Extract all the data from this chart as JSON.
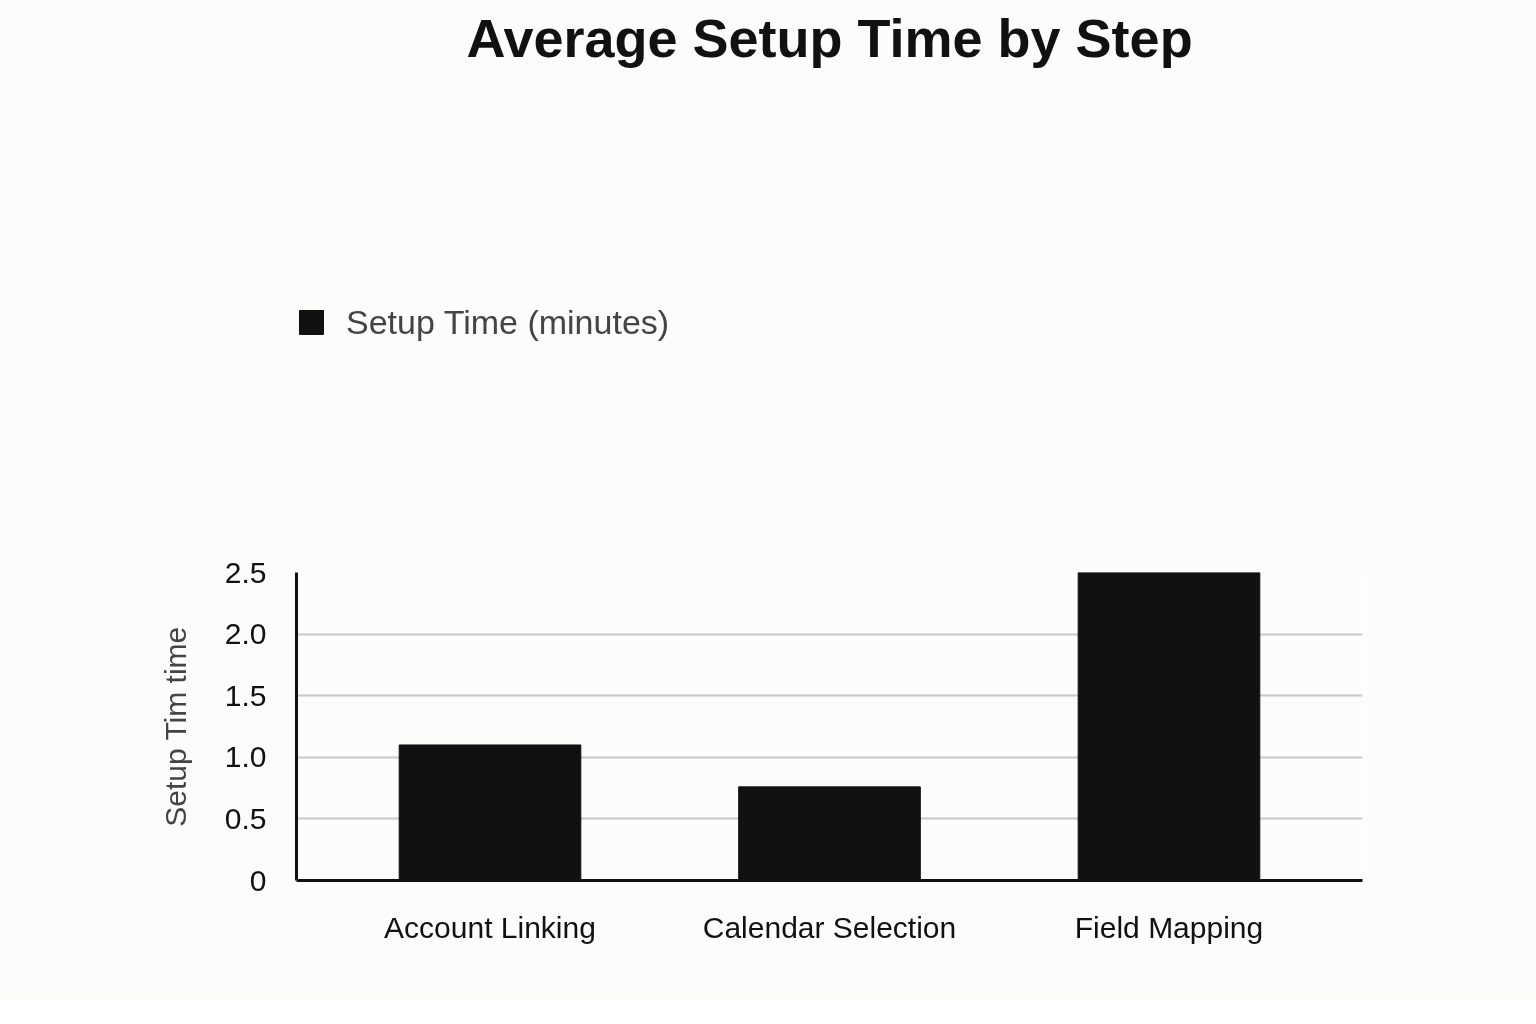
{
  "chart_data": {
    "type": "bar",
    "title": "Average Setup Time by Step",
    "ylabel": "Setup Tim time",
    "categories": [
      "Account Linking",
      "Calendar Selection",
      "Field Mapping"
    ],
    "series": [
      {
        "name": "Setup Time (minutes)",
        "color": "#111111",
        "values": [
          1.1,
          0.76,
          2.5
        ]
      }
    ],
    "ylim": [
      0,
      2.5
    ],
    "yticks": [
      0,
      0.5,
      {
        "value": 1,
        "label": "1.0"
      },
      1.5,
      {
        "value": 2,
        "label": "2.0"
      },
      2.5
    ],
    "grid": "y",
    "legend": "top left"
  }
}
